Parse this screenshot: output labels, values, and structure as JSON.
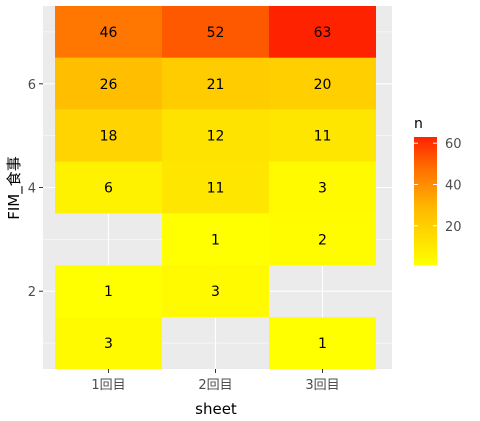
{
  "chart_data": {
    "type": "heatmap",
    "xlabel": "sheet",
    "ylabel": "FIM_食事",
    "x_categories": [
      "1回目",
      "2回目",
      "3回目"
    ],
    "y_range": [
      0.5,
      7.5
    ],
    "y_ticks": [
      2,
      4,
      6
    ],
    "cells": [
      {
        "x": "1回目",
        "y": 7,
        "n": 46
      },
      {
        "x": "2回目",
        "y": 7,
        "n": 52
      },
      {
        "x": "3回目",
        "y": 7,
        "n": 63
      },
      {
        "x": "1回目",
        "y": 6,
        "n": 26
      },
      {
        "x": "2回目",
        "y": 6,
        "n": 21
      },
      {
        "x": "3回目",
        "y": 6,
        "n": 20
      },
      {
        "x": "1回目",
        "y": 5,
        "n": 18
      },
      {
        "x": "2回目",
        "y": 5,
        "n": 12
      },
      {
        "x": "3回目",
        "y": 5,
        "n": 11
      },
      {
        "x": "1回目",
        "y": 4,
        "n": 6
      },
      {
        "x": "2回目",
        "y": 4,
        "n": 11
      },
      {
        "x": "3回目",
        "y": 4,
        "n": 3
      },
      {
        "x": "2回目",
        "y": 3,
        "n": 1
      },
      {
        "x": "3回目",
        "y": 3,
        "n": 2
      },
      {
        "x": "1回目",
        "y": 2,
        "n": 1
      },
      {
        "x": "2回目",
        "y": 2,
        "n": 3
      },
      {
        "x": "1回目",
        "y": 1,
        "n": 3
      },
      {
        "x": "3回目",
        "y": 1,
        "n": 1
      }
    ],
    "legend": {
      "title": "n",
      "ticks": [
        20,
        40,
        60
      ],
      "range": [
        1,
        63
      ],
      "low_color": "#ffff00",
      "high_color": "#ff2200"
    },
    "grid": true,
    "panel_background": "#ebebeb",
    "legend_position": "right"
  }
}
